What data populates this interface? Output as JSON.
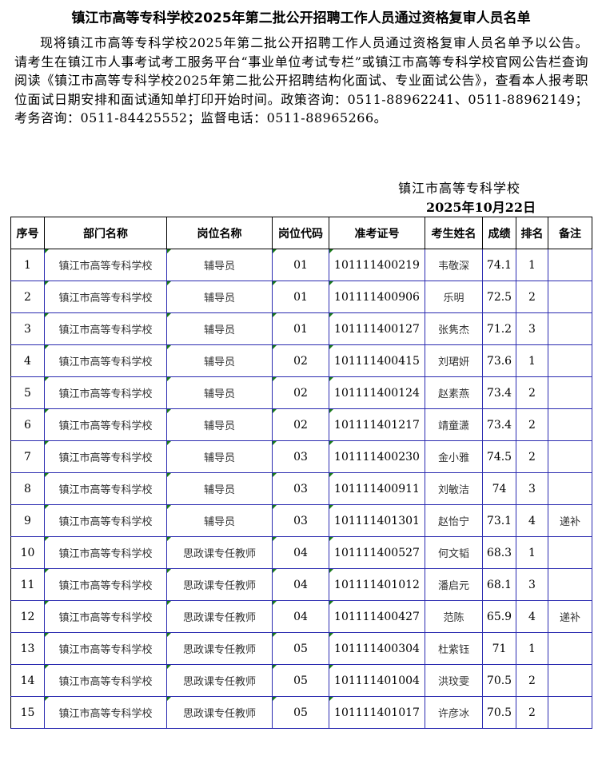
{
  "title": "镇江市高等专科学校2025年第二批公开招聘工作人员通过资格复审人员名单",
  "paragraph": "现将镇江市高等专科学校2025年第二批公开招聘工作人员通过资格复审人员名单予以公告。请考生在镇江市人事考试考工服务平台“事业单位考试专栏”或镇江市高等专科学校官网公告栏查询阅读《镇江市高等专科学校2025年第二批公开招聘结构化面试、专业面试公告》，查看本人报考职位面试日期安排和面试通知单打印开始时间。政策咨询：0511-88962241、0511-88962149；考务咨询：0511-84425552；监督电话：0511-88965266。",
  "signature": {
    "org": "镇江市高等专科学校",
    "date": "2025年10月22日"
  },
  "table": {
    "headers": [
      "序号",
      "部门名称",
      "岗位名称",
      "岗位代码",
      "准考证号",
      "考生姓名",
      "成绩",
      "排名",
      "备注"
    ],
    "rows": [
      [
        "1",
        "镇江市高等专科学校",
        "辅导员",
        "01",
        "101111400219",
        "韦敬深",
        "74.1",
        "1",
        ""
      ],
      [
        "2",
        "镇江市高等专科学校",
        "辅导员",
        "01",
        "101111400906",
        "乐明",
        "72.5",
        "2",
        ""
      ],
      [
        "3",
        "镇江市高等专科学校",
        "辅导员",
        "01",
        "101111400127",
        "张隽杰",
        "71.2",
        "3",
        ""
      ],
      [
        "4",
        "镇江市高等专科学校",
        "辅导员",
        "02",
        "101111400415",
        "刘珺妍",
        "73.6",
        "1",
        ""
      ],
      [
        "5",
        "镇江市高等专科学校",
        "辅导员",
        "02",
        "101111400124",
        "赵素燕",
        "73.4",
        "2",
        ""
      ],
      [
        "6",
        "镇江市高等专科学校",
        "辅导员",
        "02",
        "101111401217",
        "靖童潇",
        "73.4",
        "2",
        ""
      ],
      [
        "7",
        "镇江市高等专科学校",
        "辅导员",
        "03",
        "101111400230",
        "金小雅",
        "74.5",
        "2",
        ""
      ],
      [
        "8",
        "镇江市高等专科学校",
        "辅导员",
        "03",
        "101111400911",
        "刘敏洁",
        "74",
        "3",
        ""
      ],
      [
        "9",
        "镇江市高等专科学校",
        "辅导员",
        "03",
        "101111401301",
        "赵怡宁",
        "73.1",
        "4",
        "递补"
      ],
      [
        "10",
        "镇江市高等专科学校",
        "思政课专任教师",
        "04",
        "101111400527",
        "何文韬",
        "68.3",
        "1",
        ""
      ],
      [
        "11",
        "镇江市高等专科学校",
        "思政课专任教师",
        "04",
        "101111401012",
        "潘启元",
        "68.1",
        "3",
        ""
      ],
      [
        "12",
        "镇江市高等专科学校",
        "思政课专任教师",
        "04",
        "101111400427",
        "范陈",
        "65.9",
        "4",
        "递补"
      ],
      [
        "13",
        "镇江市高等专科学校",
        "思政课专任教师",
        "05",
        "101111400304",
        "杜紫钰",
        "71",
        "1",
        ""
      ],
      [
        "14",
        "镇江市高等专科学校",
        "思政课专任教师",
        "05",
        "101111401004",
        "洪玟雯",
        "70.5",
        "2",
        ""
      ],
      [
        "15",
        "镇江市高等专科学校",
        "思政课专任教师",
        "05",
        "101111401017",
        "许彦冰",
        "70.5",
        "2",
        ""
      ]
    ]
  }
}
